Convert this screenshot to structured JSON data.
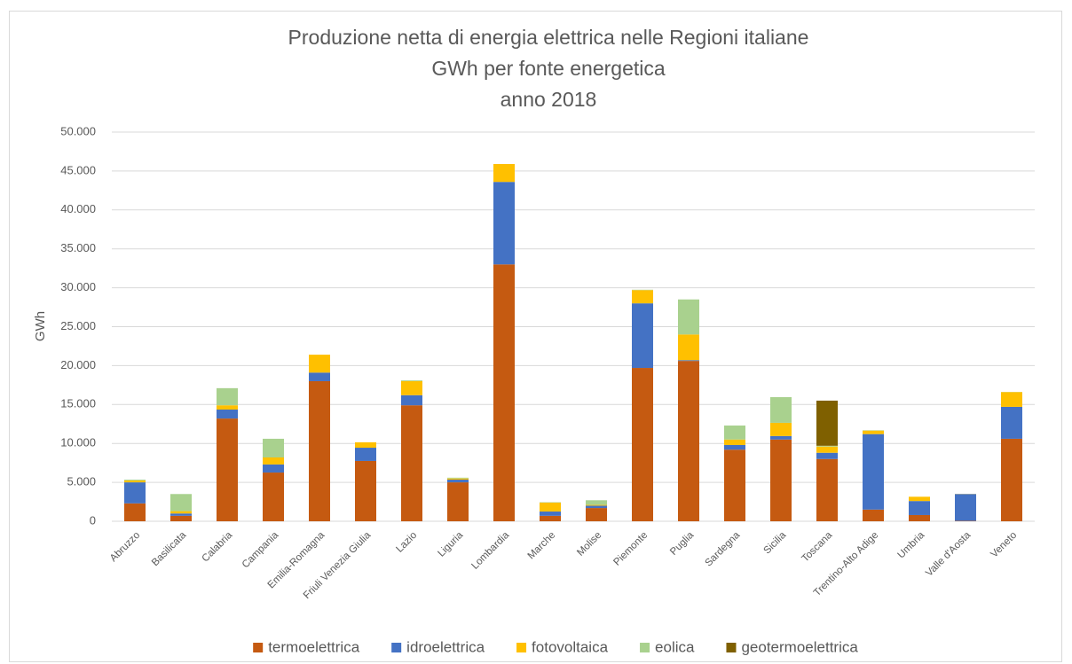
{
  "chart_data": {
    "type": "stacked_bar",
    "title": [
      "Produzione netta di energia elettrica nelle Regioni italiane",
      "GWh per fonte energetica",
      "anno 2018"
    ],
    "y_label": "GWh",
    "categories": [
      "Abruzzo",
      "Basilicata",
      "Calabria",
      "Campania",
      "Emilia-Romagna",
      "Friuli Venezia Giulia",
      "Lazio",
      "Liguria",
      "Lombardia",
      "Marche",
      "Molise",
      "Piemonte",
      "Puglia",
      "Sardegna",
      "Sicilia",
      "Toscana",
      "Trentino-Alto Adige",
      "Umbria",
      "Valle d'Aosta",
      "Veneto"
    ],
    "series": [
      {
        "name": "termoelettrica",
        "color": "#c55a11",
        "values": [
          2300,
          700,
          13200,
          6260,
          18000,
          7750,
          14900,
          5000,
          33000,
          700,
          1700,
          19700,
          20600,
          9200,
          10500,
          8000,
          1500,
          800,
          50,
          10600
        ]
      },
      {
        "name": "idroelettrica",
        "color": "#4472c4",
        "values": [
          2700,
          300,
          1150,
          1040,
          1100,
          1700,
          1300,
          350,
          10600,
          550,
          300,
          8300,
          100,
          600,
          450,
          800,
          9700,
          1800,
          3450,
          4100
        ]
      },
      {
        "name": "fotovoltaica",
        "color": "#ffc000",
        "values": [
          250,
          300,
          550,
          900,
          2300,
          700,
          1800,
          150,
          2300,
          1150,
          100,
          1700,
          3300,
          700,
          1700,
          800,
          450,
          550,
          20,
          1900
        ]
      },
      {
        "name": "eolica",
        "color": "#a9d18e",
        "values": [
          100,
          2200,
          2200,
          2400,
          0,
          0,
          100,
          100,
          0,
          50,
          600,
          50,
          4500,
          1800,
          3300,
          100,
          50,
          0,
          0,
          20
        ]
      },
      {
        "name": "geotermoelettrica",
        "color": "#7f6000",
        "values": [
          0,
          0,
          0,
          0,
          0,
          0,
          0,
          0,
          0,
          0,
          0,
          0,
          0,
          0,
          0,
          5800,
          0,
          0,
          0,
          0
        ]
      }
    ],
    "ylim": [
      0,
      50000
    ],
    "yticks": [
      0,
      {
        "value": 5000,
        "label": "5.000"
      },
      {
        "value": 10000,
        "label": "10.000"
      },
      {
        "value": 15000,
        "label": "15.000"
      },
      {
        "value": 20000,
        "label": "20.000"
      },
      {
        "value": 25000,
        "label": "25.000"
      },
      {
        "value": 30000,
        "label": "30.000"
      },
      {
        "value": 35000,
        "label": "35.000"
      },
      {
        "value": 40000,
        "label": "40.000"
      },
      {
        "value": 45000,
        "label": "45.000"
      },
      {
        "value": 50000,
        "label": "50.000"
      }
    ],
    "grid": true,
    "legend": "bottom"
  }
}
